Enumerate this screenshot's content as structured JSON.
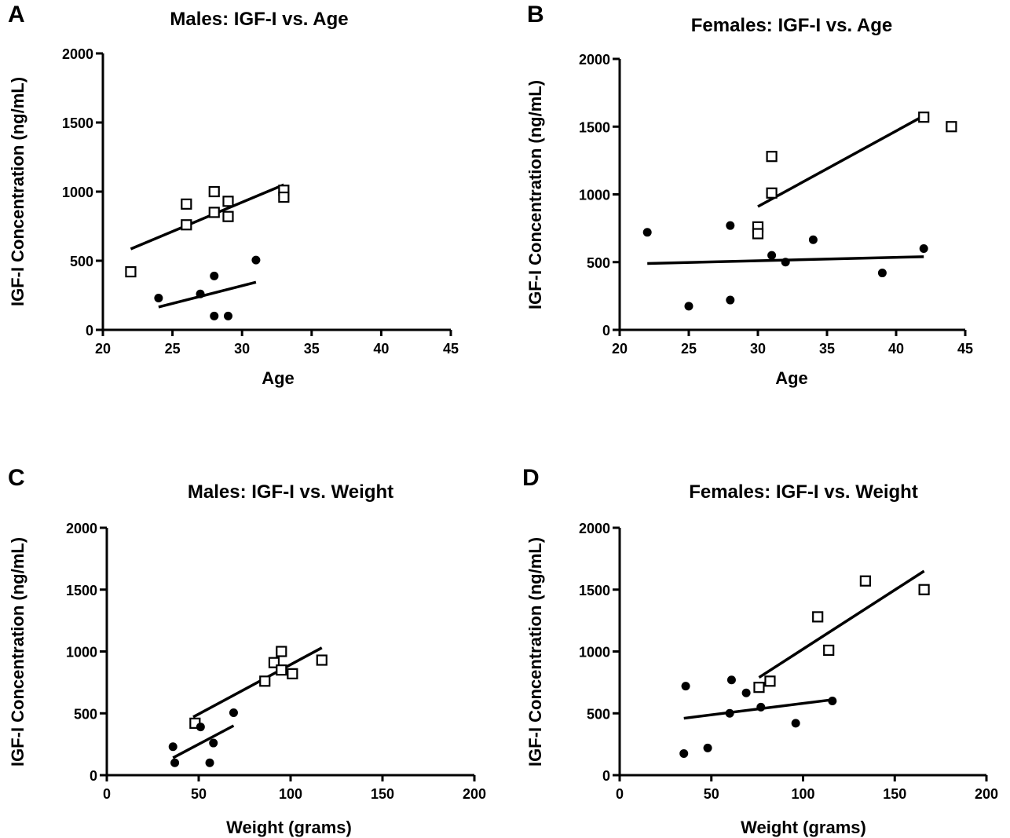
{
  "chart_data": [
    {
      "panel": "A",
      "type": "scatter",
      "title": "Males: IGF-I vs. Age",
      "xlabel": "Age",
      "ylabel": "IGF-I Concentration (ng/mL)",
      "xlim": [
        20,
        45
      ],
      "ylim": [
        0,
        2000
      ],
      "xticks": [
        "20",
        "25",
        "30",
        "35",
        "40",
        "45"
      ],
      "yticks": [
        "0",
        "500",
        "1000",
        "1500",
        "2000"
      ],
      "grid": false,
      "series": [
        {
          "marker": "open-square",
          "points": [
            [
              22,
              420
            ],
            [
              26,
              910
            ],
            [
              26,
              760
            ],
            [
              28,
              1000
            ],
            [
              28,
              850
            ],
            [
              29,
              930
            ],
            [
              29,
              820
            ],
            [
              33,
              1010
            ],
            [
              33,
              960
            ]
          ],
          "fit": [
            [
              22,
              585
            ],
            [
              33,
              1050
            ]
          ]
        },
        {
          "marker": "filled-circle",
          "points": [
            [
              24,
              230
            ],
            [
              27,
              260
            ],
            [
              28,
              390
            ],
            [
              28,
              100
            ],
            [
              29,
              100
            ],
            [
              31,
              505
            ]
          ],
          "fit": [
            [
              24,
              165
            ],
            [
              31,
              345
            ]
          ]
        }
      ]
    },
    {
      "panel": "B",
      "type": "scatter",
      "title": "Females:  IGF-I vs. Age",
      "xlabel": "Age",
      "ylabel": "IGF-I Concentration  (ng/mL)",
      "xlim": [
        20,
        45
      ],
      "ylim": [
        0,
        2000
      ],
      "xticks": [
        "20",
        "25",
        "30",
        "35",
        "40",
        "45"
      ],
      "yticks": [
        "0",
        "500",
        "1000",
        "1500",
        "2000"
      ],
      "grid": false,
      "series": [
        {
          "marker": "open-square",
          "points": [
            [
              30,
              760
            ],
            [
              30,
              710
            ],
            [
              31,
              1280
            ],
            [
              31,
              1010
            ],
            [
              42,
              1570
            ],
            [
              44,
              1500
            ]
          ],
          "fit": [
            [
              30,
              910
            ],
            [
              42,
              1580
            ]
          ]
        },
        {
          "marker": "filled-circle",
          "points": [
            [
              22,
              720
            ],
            [
              25,
              175
            ],
            [
              28,
              770
            ],
            [
              28,
              220
            ],
            [
              31,
              550
            ],
            [
              32,
              500
            ],
            [
              34,
              665
            ],
            [
              39,
              420
            ],
            [
              42,
              600
            ]
          ],
          "fit": [
            [
              22,
              490
            ],
            [
              42,
              540
            ]
          ]
        }
      ]
    },
    {
      "panel": "C",
      "type": "scatter",
      "title": "Males:  IGF-I vs. Weight",
      "xlabel": "Weight (grams)",
      "ylabel": "IGF-I Concentration (ng/mL)",
      "xlim": [
        0,
        200
      ],
      "ylim": [
        0,
        2000
      ],
      "xticks": [
        "0",
        "50",
        "100",
        "150",
        "200"
      ],
      "yticks": [
        "0",
        "500",
        "1000",
        "1500",
        "2000"
      ],
      "grid": false,
      "series": [
        {
          "marker": "open-square",
          "points": [
            [
              48,
              420
            ],
            [
              86,
              760
            ],
            [
              91,
              910
            ],
            [
              95,
              1000
            ],
            [
              95,
              850
            ],
            [
              101,
              820
            ],
            [
              117,
              930
            ]
          ],
          "fit": [
            [
              47,
              470
            ],
            [
              117,
              1030
            ]
          ]
        },
        {
          "marker": "filled-circle",
          "points": [
            [
              36,
              230
            ],
            [
              37,
              100
            ],
            [
              51,
              390
            ],
            [
              56,
              100
            ],
            [
              58,
              260
            ],
            [
              69,
              505
            ]
          ],
          "fit": [
            [
              36,
              140
            ],
            [
              69,
              400
            ]
          ]
        }
      ]
    },
    {
      "panel": "D",
      "type": "scatter",
      "title": "Females:  IGF-I vs. Weight",
      "xlabel": "Weight (grams)",
      "ylabel": "IGF-I Concentration (ng/mL)",
      "xlim": [
        0,
        200
      ],
      "ylim": [
        0,
        2000
      ],
      "xticks": [
        "0",
        "50",
        "100",
        "150",
        "200"
      ],
      "yticks": [
        "0",
        "500",
        "1000",
        "1500",
        "2000"
      ],
      "grid": false,
      "series": [
        {
          "marker": "open-square",
          "points": [
            [
              76,
              710
            ],
            [
              82,
              760
            ],
            [
              108,
              1280
            ],
            [
              114,
              1010
            ],
            [
              134,
              1570
            ],
            [
              166,
              1500
            ]
          ],
          "fit": [
            [
              76,
              790
            ],
            [
              166,
              1650
            ]
          ]
        },
        {
          "marker": "filled-circle",
          "points": [
            [
              35,
              175
            ],
            [
              36,
              720
            ],
            [
              48,
              220
            ],
            [
              60,
              500
            ],
            [
              61,
              770
            ],
            [
              69,
              665
            ],
            [
              77,
              550
            ],
            [
              96,
              420
            ],
            [
              116,
              600
            ]
          ],
          "fit": [
            [
              35,
              460
            ],
            [
              116,
              610
            ]
          ]
        }
      ]
    }
  ]
}
